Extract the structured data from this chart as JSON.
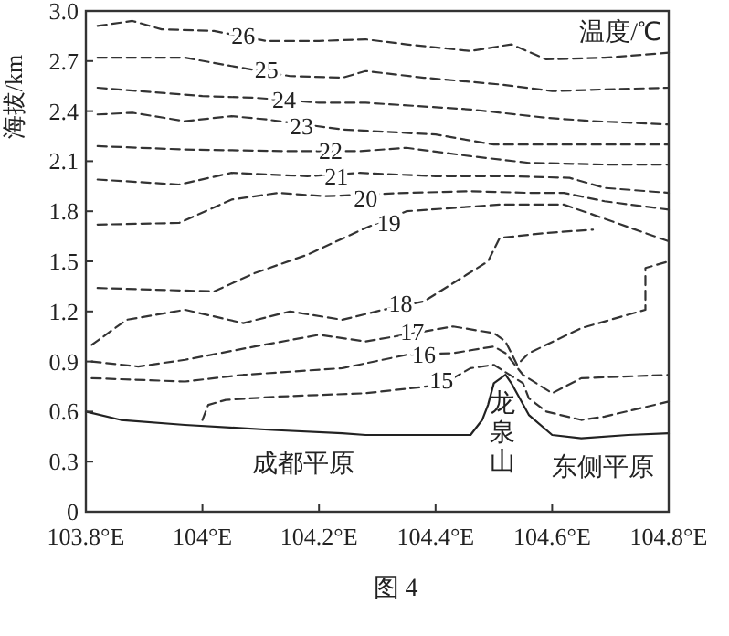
{
  "chart_data": {
    "type": "line",
    "ylabel": "海拔/km",
    "xlim": [
      103.8,
      104.8
    ],
    "ylim": [
      0,
      3
    ],
    "xticks": [
      {
        "value": 103.8,
        "label": "103.8°E"
      },
      {
        "value": 104,
        "label": "104°E"
      },
      {
        "value": 104.2,
        "label": "104.2°E"
      },
      {
        "value": 104.4,
        "label": "104.4°E"
      },
      {
        "value": 104.6,
        "label": "104.6°E"
      },
      {
        "value": 104.8,
        "label": "104.8°E"
      }
    ],
    "yticks": [
      0,
      0.3,
      0.6,
      0.9,
      1.2,
      1.5,
      1.8,
      2.1,
      2.4,
      2.7,
      {
        "value": 3,
        "label": "3.0"
      }
    ],
    "series": [
      {
        "color": "#333333",
        "line_style": "dashed",
        "x": [
          103.82,
          103.88,
          103.93,
          104.02,
          104.11,
          104.2,
          104.28,
          104.35,
          104.46,
          104.53,
          104.59,
          104.69,
          104.8
        ],
        "values": [
          2.91,
          2.94,
          2.89,
          2.88,
          2.82,
          2.82,
          2.83,
          2.8,
          2.76,
          2.8,
          2.71,
          2.72,
          2.75
        ]
      },
      {
        "color": "#333333",
        "line_style": "dashed",
        "x": [
          103.82,
          103.97,
          104.05,
          104.15,
          104.24,
          104.28,
          104.38,
          104.51,
          104.6,
          104.69,
          104.8
        ],
        "values": [
          2.72,
          2.72,
          2.67,
          2.61,
          2.6,
          2.64,
          2.6,
          2.56,
          2.52,
          2.53,
          2.54
        ]
      },
      {
        "color": "#333333",
        "line_style": "dashed",
        "x": [
          103.82,
          104.0,
          104.09,
          104.2,
          104.28,
          104.46,
          104.59,
          104.67,
          104.8
        ],
        "values": [
          2.54,
          2.49,
          2.48,
          2.45,
          2.45,
          2.41,
          2.36,
          2.34,
          2.32
        ]
      },
      {
        "color": "#333333",
        "line_style": "dashed",
        "x": [
          103.82,
          103.88,
          103.97,
          104.05,
          104.11,
          104.24,
          104.4,
          104.5,
          104.63,
          104.8
        ],
        "values": [
          2.38,
          2.39,
          2.34,
          2.37,
          2.35,
          2.29,
          2.26,
          2.2,
          2.2,
          2.2
        ]
      },
      {
        "color": "#333333",
        "line_style": "dashed",
        "x": [
          103.82,
          103.97,
          104.15,
          104.27,
          104.35,
          104.46,
          104.56,
          104.69,
          104.8
        ],
        "values": [
          2.19,
          2.17,
          2.16,
          2.16,
          2.18,
          2.13,
          2.09,
          2.08,
          2.08
        ]
      },
      {
        "color": "#333333",
        "line_style": "dashed",
        "x": [
          103.82,
          103.96,
          104.05,
          104.18,
          104.27,
          104.4,
          104.53,
          104.63,
          104.69,
          104.8
        ],
        "values": [
          1.99,
          1.96,
          2.03,
          2.01,
          2.03,
          2.01,
          2.01,
          2.0,
          1.94,
          1.91
        ]
      },
      {
        "color": "#333333",
        "line_style": "dashed",
        "x": [
          103.82,
          103.96,
          104.05,
          104.13,
          104.21,
          104.35,
          104.46,
          104.56,
          104.62,
          104.69,
          104.8
        ],
        "values": [
          1.72,
          1.73,
          1.87,
          1.91,
          1.89,
          1.91,
          1.92,
          1.91,
          1.91,
          1.86,
          1.81
        ]
      },
      {
        "color": "#333333",
        "line_style": "dashed",
        "x": [
          103.82,
          104.02,
          104.09,
          104.18,
          104.28,
          104.35,
          104.51,
          104.62,
          104.67,
          104.8
        ],
        "values": [
          1.34,
          1.32,
          1.43,
          1.54,
          1.7,
          1.8,
          1.84,
          1.84,
          1.78,
          1.62
        ]
      },
      {
        "color": "#333333",
        "line_style": "dashed",
        "x": [
          103.81,
          103.87,
          103.97,
          104.07,
          104.15,
          104.24,
          104.31,
          104.38,
          104.49,
          104.51,
          104.59,
          104.67
        ],
        "values": [
          1.0,
          1.15,
          1.21,
          1.13,
          1.2,
          1.15,
          1.21,
          1.26,
          1.5,
          1.64,
          1.67,
          1.69
        ]
      },
      {
        "color": "#333333",
        "line_style": "dashed",
        "x": [
          103.81,
          103.89,
          103.97,
          104.09,
          104.2,
          104.28,
          104.43,
          104.5,
          104.52,
          104.54,
          104.56,
          104.65,
          104.76,
          104.76,
          104.8
        ],
        "values": [
          0.9,
          0.87,
          0.91,
          0.99,
          1.06,
          1.02,
          1.11,
          1.07,
          1.02,
          0.88,
          0.95,
          1.1,
          1.21,
          1.46,
          1.5
        ]
      },
      {
        "color": "#333333",
        "line_style": "dashed",
        "x": [
          103.81,
          103.97,
          104.07,
          104.24,
          104.35,
          104.43,
          104.5,
          104.52,
          104.55,
          104.6,
          104.65,
          104.8
        ],
        "values": [
          0.8,
          0.78,
          0.82,
          0.86,
          0.94,
          0.95,
          0.99,
          0.95,
          0.82,
          0.71,
          0.8,
          0.82
        ]
      },
      {
        "color": "#333333",
        "line_style": "dashed",
        "x": [
          104.0,
          104.01,
          104.04,
          104.13,
          104.28,
          104.41,
          104.46,
          104.5,
          104.55,
          104.56,
          104.59,
          104.65,
          104.69,
          104.8
        ],
        "values": [
          0.55,
          0.64,
          0.67,
          0.69,
          0.71,
          0.76,
          0.86,
          0.88,
          0.77,
          0.68,
          0.6,
          0.55,
          0.57,
          0.66
        ]
      },
      {
        "color": "#222222",
        "line_style": "solid",
        "x": [
          103.8,
          103.86,
          103.97,
          104.12,
          104.24,
          104.28,
          104.46,
          104.48,
          104.49,
          104.5,
          104.52,
          104.53,
          104.56,
          104.6,
          104.65,
          104.73,
          104.8
        ],
        "values": [
          0.6,
          0.55,
          0.52,
          0.49,
          0.47,
          0.46,
          0.46,
          0.55,
          0.64,
          0.77,
          0.82,
          0.77,
          0.58,
          0.46,
          0.44,
          0.46,
          0.47
        ]
      }
    ],
    "annotations": [
      "温度/℃",
      {
        "text": "26",
        "x": 104.07,
        "y": 2.85
      },
      {
        "text": "25",
        "x": 104.11,
        "y": 2.65
      },
      {
        "text": "24",
        "x": 104.14,
        "y": 2.47
      },
      {
        "text": "23",
        "x": 104.17,
        "y": 2.31
      },
      {
        "text": "22",
        "x": 104.22,
        "y": 2.16
      },
      {
        "text": "21",
        "x": 104.23,
        "y": 2.01
      },
      {
        "text": "20",
        "x": 104.28,
        "y": 1.88
      },
      {
        "text": "19",
        "x": 104.32,
        "y": 1.73
      },
      {
        "text": "18",
        "x": 104.34,
        "y": 1.25
      },
      {
        "text": "17",
        "x": 104.36,
        "y": 1.08
      },
      {
        "text": "16",
        "x": 104.38,
        "y": 0.94
      },
      {
        "text": "15",
        "x": 104.41,
        "y": 0.79
      },
      "成都平原",
      "龙泉山",
      "东侧平原",
      "图 4"
    ]
  }
}
